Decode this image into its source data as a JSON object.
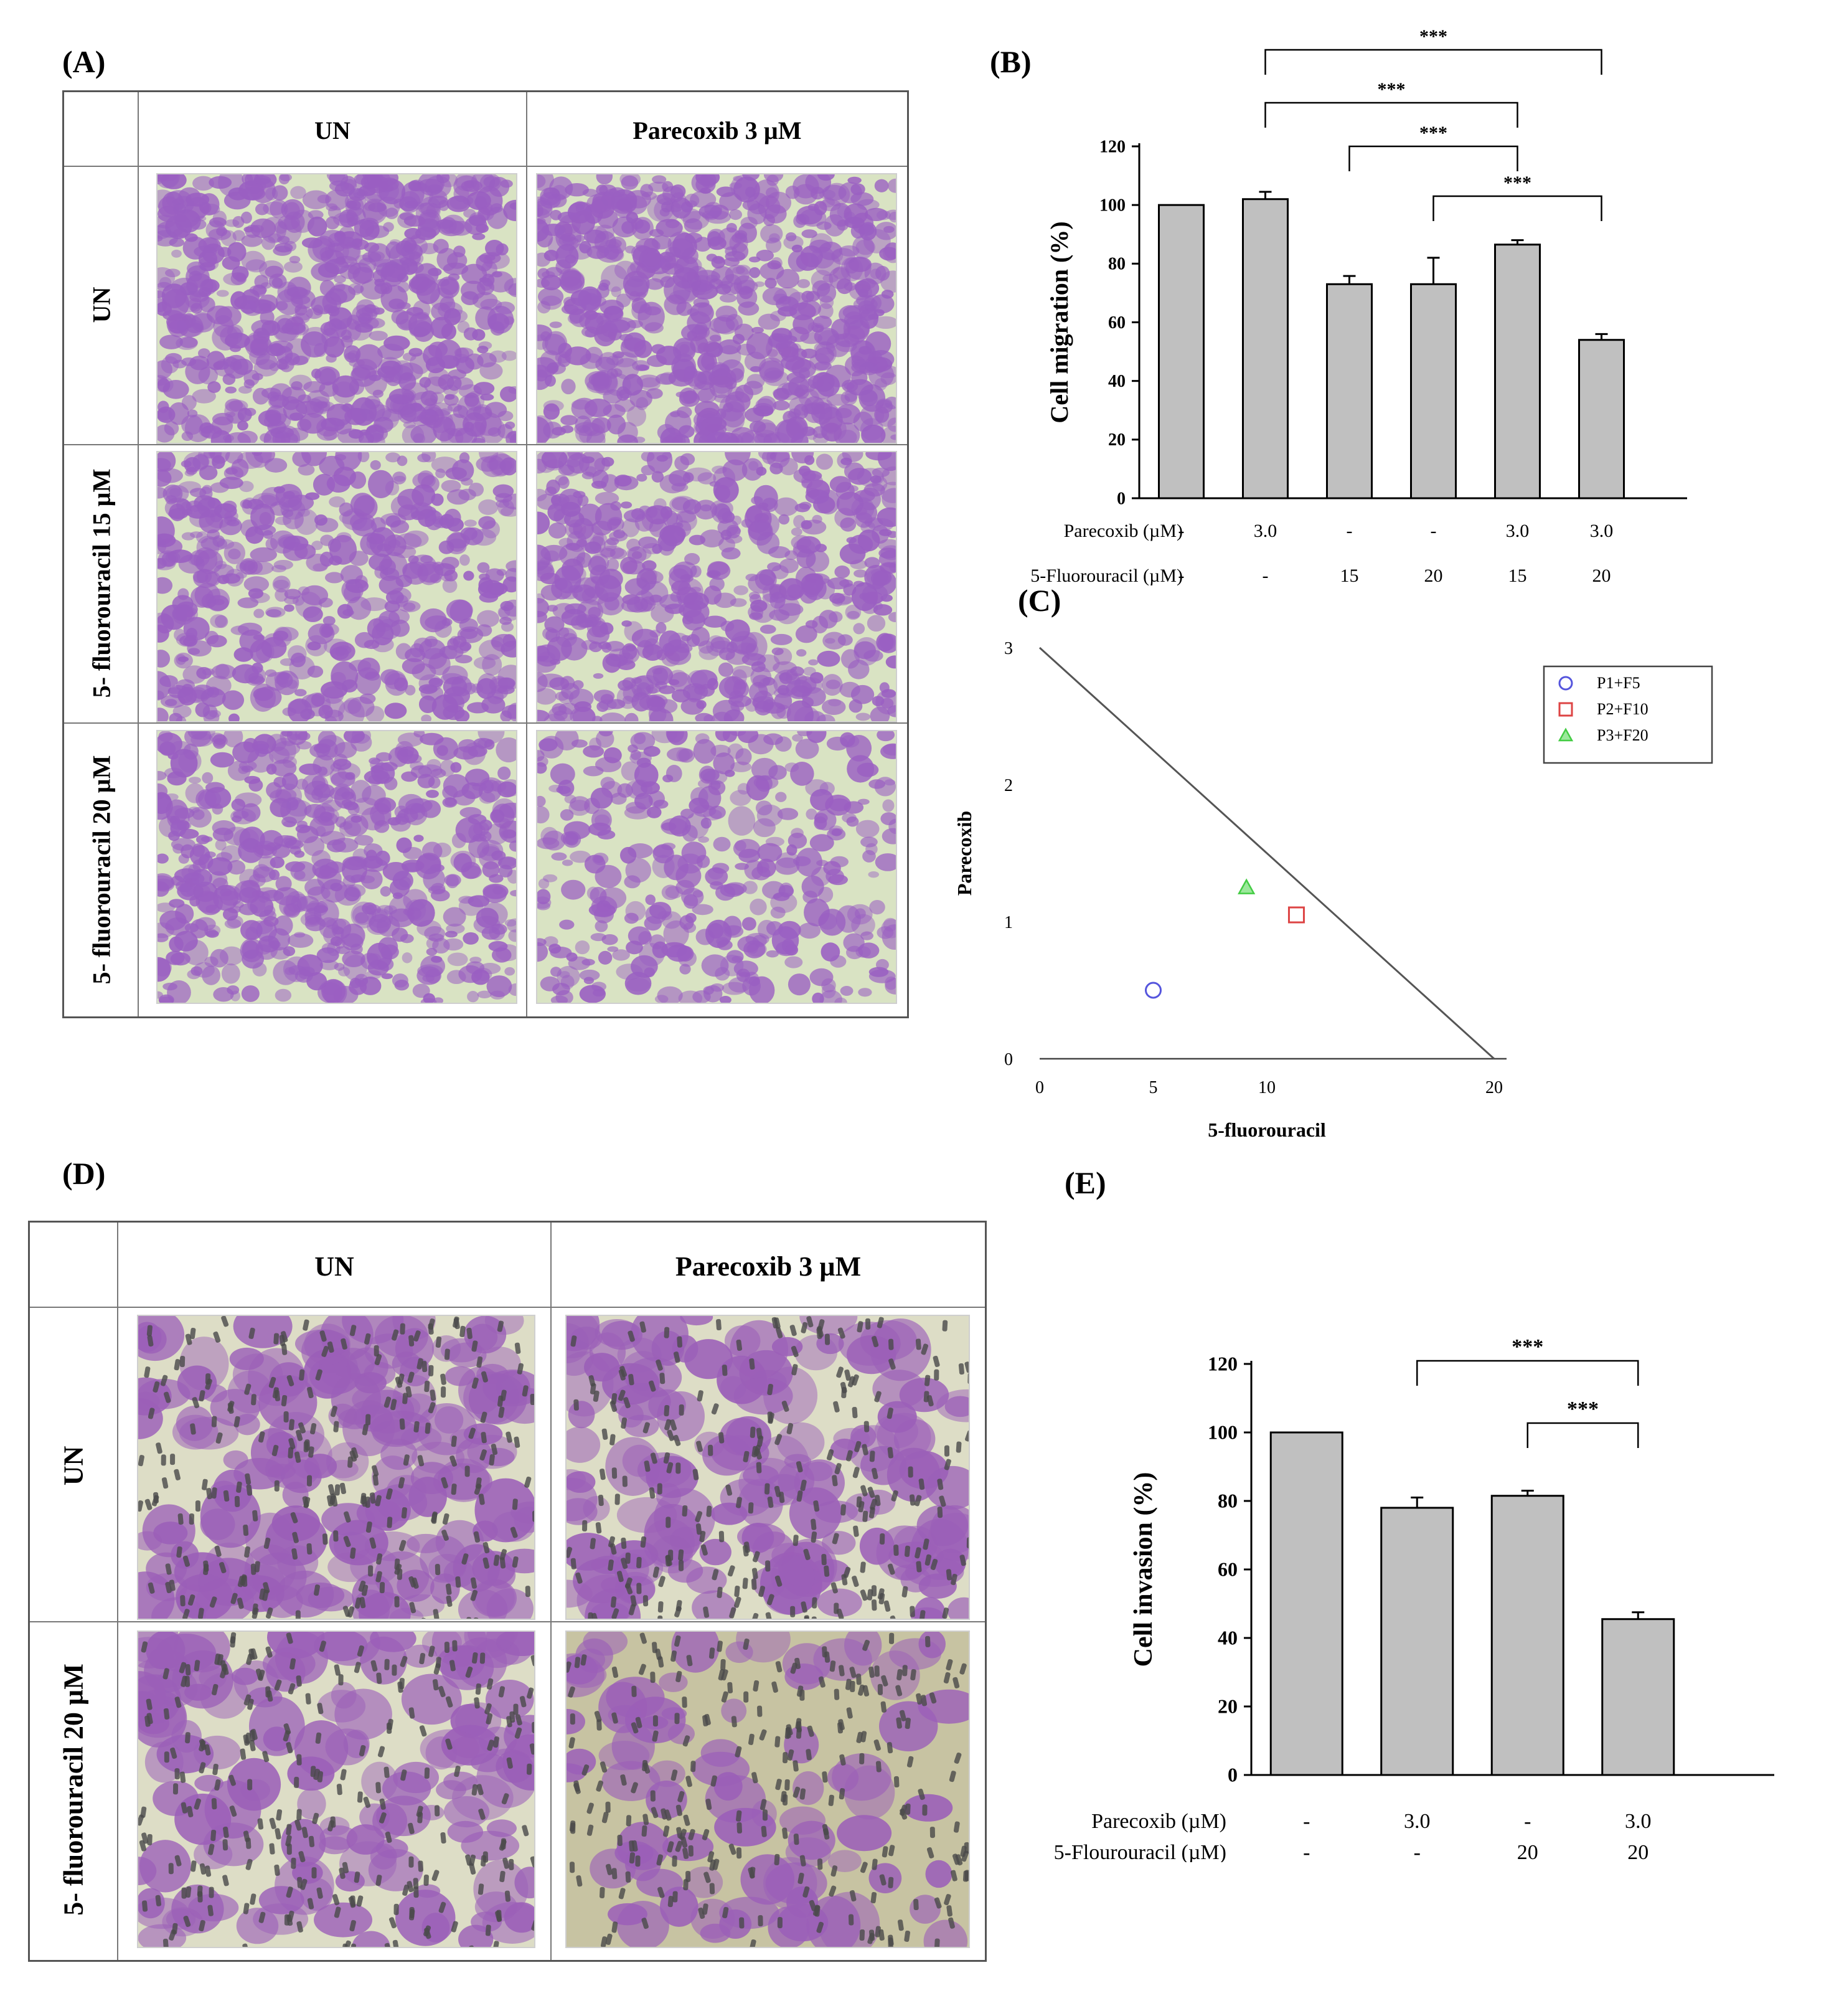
{
  "panel_labels": {
    "a": "(A)",
    "b": "(B)",
    "c": "(C)",
    "d": "(D)",
    "e": "(E)"
  },
  "panel_a": {
    "col_headers": [
      "UN",
      "Parecoxib 3 µM"
    ],
    "row_headers": [
      "UN",
      "5- fluorouracil 15 µM",
      "5- fluorouracil 20 µM"
    ],
    "stain_color": "#9a5fc2",
    "background_color": "#d9e3c3"
  },
  "panel_d": {
    "col_headers": [
      "UN",
      "Parecoxib 3 µM"
    ],
    "row_headers": [
      "UN",
      "5- fluorouracil 20 µM"
    ],
    "stain_color": "#9b5fb8",
    "background_color": "#ddddc6"
  },
  "chart_data": [
    {
      "panel": "B",
      "type": "bar",
      "ylabel": "Cell migration (%)",
      "ylim": [
        0,
        120
      ],
      "yticks": [
        "0",
        "20",
        "40",
        "60",
        "80",
        "100",
        "120"
      ],
      "values": [
        100,
        102,
        73,
        73,
        86.5,
        54
      ],
      "errors": [
        0,
        2.5,
        2.8,
        9,
        1.5,
        2
      ],
      "bar_color": "#c0c0c0",
      "condition_rows": [
        {
          "label": "Parecoxib (µM)",
          "values": [
            "-",
            "3.0",
            "-",
            "-",
            "3.0",
            "3.0"
          ]
        },
        {
          "label": "5-Fluorouracil (µM)",
          "values": [
            "-",
            "-",
            "15",
            "20",
            "15",
            "20"
          ]
        }
      ],
      "significance": [
        {
          "from": 1,
          "to": 5,
          "text": "***"
        },
        {
          "from": 1,
          "to": 4,
          "text": "***"
        },
        {
          "from": 2,
          "to": 4,
          "text": "***"
        },
        {
          "from": 3,
          "to": 5,
          "text": "***"
        }
      ]
    },
    {
      "panel": "C",
      "type": "scatter",
      "xlabel": "5-fluorouracil",
      "ylabel": "Parecoxib",
      "xlim": [
        0,
        20
      ],
      "ylim": [
        0,
        3
      ],
      "xticks": [
        "0",
        "5",
        "10",
        "20"
      ],
      "yticks": [
        "0",
        "1",
        "2",
        "3"
      ],
      "isobole": [
        [
          0,
          3
        ],
        [
          20,
          0
        ]
      ],
      "series": [
        {
          "name": "P1+F5",
          "marker": "circle",
          "color": "#5555dd",
          "x": 5,
          "y": 0.5
        },
        {
          "name": "P2+F10",
          "marker": "square",
          "color": "#dd4444",
          "x": 11.3,
          "y": 1.05
        },
        {
          "name": "P3+F20",
          "marker": "triangle",
          "color": "#44cc44",
          "x": 9.1,
          "y": 1.25
        }
      ],
      "legend_position": "top-right"
    },
    {
      "panel": "E",
      "type": "bar",
      "ylabel": "Cell invasion (%)",
      "ylim": [
        0,
        120
      ],
      "yticks": [
        "0",
        "20",
        "40",
        "60",
        "80",
        "100",
        "120"
      ],
      "values": [
        100,
        78,
        81.5,
        45.5
      ],
      "errors": [
        0,
        3,
        1.5,
        2
      ],
      "bar_color": "#c0c0c0",
      "condition_rows": [
        {
          "label": "Parecoxib (µM)",
          "values": [
            "-",
            "3.0",
            "-",
            "3.0"
          ]
        },
        {
          "label": "5-Flourouracil (µM)",
          "values": [
            "-",
            "-",
            "20",
            "20"
          ]
        }
      ],
      "significance": [
        {
          "from": 1,
          "to": 3,
          "text": "***"
        },
        {
          "from": 2,
          "to": 3,
          "text": "***"
        }
      ]
    }
  ]
}
